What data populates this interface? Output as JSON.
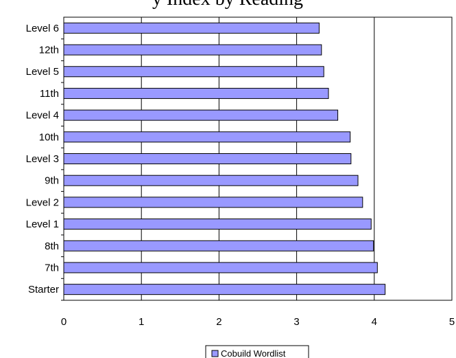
{
  "chart_data": {
    "type": "bar",
    "orientation": "horizontal",
    "title": "y Index by Reading",
    "categories": [
      "Starter",
      "7th",
      "8th",
      "Level 1",
      "Level 2",
      "9th",
      "Level 3",
      "10th",
      "Level 4",
      "11th",
      "Level 5",
      "12th",
      "Level 6"
    ],
    "series": [
      {
        "name": "Cobuild Wordlist",
        "color": "#9999ff",
        "values": [
          4.14,
          4.04,
          3.99,
          3.96,
          3.85,
          3.79,
          3.7,
          3.69,
          3.53,
          3.41,
          3.35,
          3.32,
          3.29
        ]
      }
    ],
    "xlim": [
      0,
      5
    ],
    "xticks": [
      "0",
      "1",
      "2",
      "3",
      "4",
      "5"
    ],
    "grid": "vertical",
    "legend_position": "bottom"
  }
}
